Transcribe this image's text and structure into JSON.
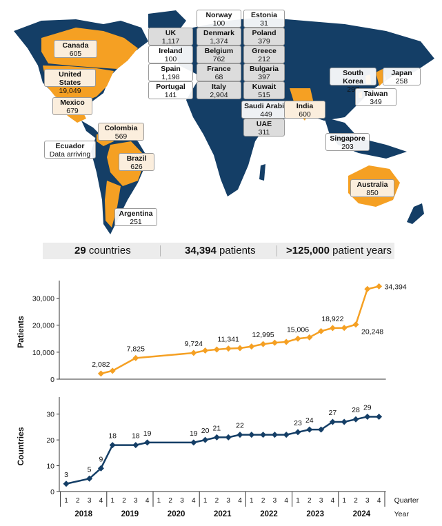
{
  "colors": {
    "ocean_land": "#143e66",
    "highlight": "#f5a023",
    "accent_line_top": "#f5a023",
    "accent_line_bottom": "#143e66"
  },
  "map": {
    "countries": [
      {
        "name": "Norway",
        "value": "100"
      },
      {
        "name": "Estonia",
        "value": "31"
      },
      {
        "name": "UK",
        "value": "1,117"
      },
      {
        "name": "Denmark",
        "value": "1,374"
      },
      {
        "name": "Poland",
        "value": "379"
      },
      {
        "name": "Canada",
        "value": "605"
      },
      {
        "name": "Ireland",
        "value": "100"
      },
      {
        "name": "Belgium",
        "value": "762"
      },
      {
        "name": "Greece",
        "value": "212"
      },
      {
        "name": "United States",
        "value": "19,049"
      },
      {
        "name": "Spain",
        "value": "1,198"
      },
      {
        "name": "France",
        "value": "68"
      },
      {
        "name": "Bulgaria",
        "value": "397"
      },
      {
        "name": "South Korea",
        "value": "297"
      },
      {
        "name": "Japan",
        "value": "258"
      },
      {
        "name": "Portugal",
        "value": "141"
      },
      {
        "name": "Italy",
        "value": "2,904"
      },
      {
        "name": "Kuwait",
        "value": "515"
      },
      {
        "name": "Mexico",
        "value": "679"
      },
      {
        "name": "Saudi Arabia",
        "value": "449"
      },
      {
        "name": "India",
        "value": "600"
      },
      {
        "name": "Taiwan",
        "value": "349"
      },
      {
        "name": "UAE",
        "value": "311"
      },
      {
        "name": "Colombia",
        "value": "569"
      },
      {
        "name": "Ecuador",
        "value": "Data arriving"
      },
      {
        "name": "Singapore",
        "value": "203"
      },
      {
        "name": "Brazil",
        "value": "626"
      },
      {
        "name": "Australia",
        "value": "850"
      },
      {
        "name": "Argentina",
        "value": "251"
      }
    ]
  },
  "summary": {
    "countries_value": "29",
    "countries_label": " countries",
    "patients_value": "34,394",
    "patients_label": " patients",
    "years_value": ">125,000",
    "years_label": " patient years"
  },
  "chart_data": [
    {
      "type": "line",
      "ylabel": "Patients",
      "ylim": [
        0,
        35000
      ],
      "yticks": [
        "0",
        "10,000",
        "20,000",
        "30,000"
      ],
      "x": [
        "2018 Q4",
        "2019 Q1",
        "2019 Q3",
        "2020 Q4",
        "2021 Q1",
        "2021 Q2",
        "2021 Q3",
        "2021 Q4",
        "2022 Q1",
        "2022 Q2",
        "2022 Q3",
        "2022 Q4",
        "2023 Q1",
        "2023 Q2",
        "2023 Q3",
        "2023 Q4",
        "2024 Q1",
        "2024 Q2",
        "2024 Q3",
        "2024 Q4"
      ],
      "values": [
        2082,
        3100,
        7825,
        9724,
        10600,
        11000,
        11341,
        11500,
        12100,
        12995,
        13500,
        13800,
        15006,
        15500,
        17800,
        18922,
        19000,
        20248,
        33400,
        34394
      ],
      "data_labels": [
        {
          "x": "2018 Q4",
          "label": "2,082"
        },
        {
          "x": "2019 Q3",
          "label": "7,825"
        },
        {
          "x": "2020 Q4",
          "label": "9,724"
        },
        {
          "x": "2021 Q3",
          "label": "11,341"
        },
        {
          "x": "2022 Q2",
          "label": "12,995"
        },
        {
          "x": "2023 Q1",
          "label": "15,006"
        },
        {
          "x": "2023 Q4",
          "label": "18,922"
        },
        {
          "x": "2024 Q2",
          "label": "20,248"
        },
        {
          "x": "2024 Q4",
          "label": "34,394"
        }
      ]
    },
    {
      "type": "line",
      "ylabel": "Countries",
      "xlabel": "Year",
      "quarter_axis_label": "Quarter",
      "ylim": [
        0,
        35
      ],
      "yticks": [
        "0",
        "10",
        "20",
        "30"
      ],
      "x": [
        "2018 Q1",
        "2018 Q3",
        "2018 Q4",
        "2019 Q1",
        "2019 Q3",
        "2019 Q4",
        "2020 Q4",
        "2021 Q1",
        "2021 Q2",
        "2021 Q3",
        "2021 Q4",
        "2022 Q1",
        "2022 Q2",
        "2022 Q3",
        "2022 Q4",
        "2023 Q1",
        "2023 Q2",
        "2023 Q3",
        "2023 Q4",
        "2024 Q1",
        "2024 Q2",
        "2024 Q3",
        "2024 Q4"
      ],
      "values": [
        3,
        5,
        9,
        18,
        18,
        19,
        19,
        20,
        21,
        21,
        22,
        22,
        22,
        22,
        22,
        23,
        24,
        24,
        27,
        27,
        28,
        29,
        29
      ],
      "data_labels": [
        {
          "x": "2018 Q1",
          "label": "3"
        },
        {
          "x": "2018 Q3",
          "label": "5"
        },
        {
          "x": "2018 Q4",
          "label": "9"
        },
        {
          "x": "2019 Q1",
          "label": "18"
        },
        {
          "x": "2019 Q3",
          "label": "18"
        },
        {
          "x": "2019 Q4",
          "label": "19"
        },
        {
          "x": "2020 Q4",
          "label": "19"
        },
        {
          "x": "2021 Q1",
          "label": "20"
        },
        {
          "x": "2021 Q2",
          "label": "21"
        },
        {
          "x": "2021 Q4",
          "label": "22"
        },
        {
          "x": "2023 Q1",
          "label": "23"
        },
        {
          "x": "2023 Q2",
          "label": "24"
        },
        {
          "x": "2023 Q4",
          "label": "27"
        },
        {
          "x": "2024 Q2",
          "label": "28"
        },
        {
          "x": "2024 Q3",
          "label": "29"
        }
      ],
      "years": [
        "2018",
        "2019",
        "2020",
        "2021",
        "2022",
        "2023",
        "2024"
      ],
      "quarters": [
        "1",
        "2",
        "3",
        "4"
      ]
    }
  ]
}
